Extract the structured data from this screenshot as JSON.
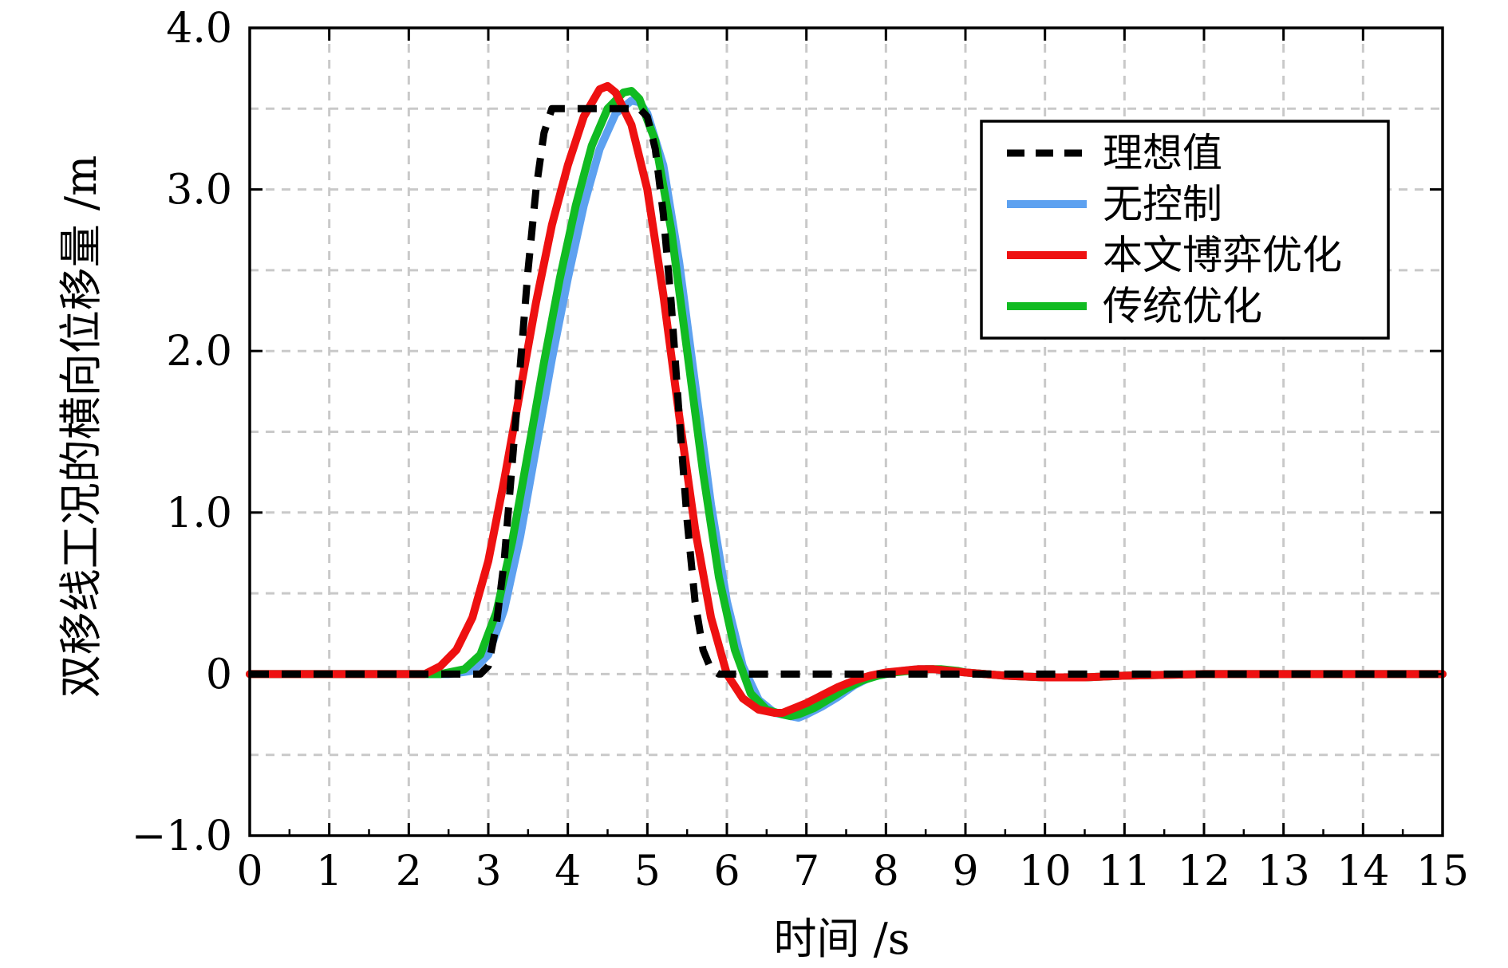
{
  "chart_data": {
    "type": "line",
    "xlabel": "时间 /s",
    "ylabel": "双移线工况的横向位移量 /m",
    "xlim": [
      0,
      15
    ],
    "ylim": [
      -1.0,
      4.0
    ],
    "x_ticks": [
      0,
      1,
      2,
      3,
      4,
      5,
      6,
      7,
      8,
      9,
      10,
      11,
      12,
      13,
      14,
      15
    ],
    "x_tick_labels": [
      "0",
      "1",
      "2",
      "3",
      "4",
      "5",
      "6",
      "7",
      "8",
      "9",
      "10",
      "11",
      "12",
      "13",
      "14",
      "15"
    ],
    "y_ticks": [
      -1.0,
      0,
      1.0,
      2.0,
      3.0,
      4.0
    ],
    "y_tick_labels": [
      "−1.0",
      "0",
      "1.0",
      "2.0",
      "3.0",
      "4.0"
    ],
    "grid": true,
    "legend_position": "top-right",
    "series": [
      {
        "name": "理想值",
        "color": "#000000",
        "style": "dashed",
        "x": [
          0,
          2.9,
          3.0,
          3.1,
          3.2,
          3.3,
          3.4,
          3.5,
          3.6,
          3.7,
          3.8,
          3.9,
          4.0,
          4.5,
          4.9,
          5.0,
          5.1,
          5.2,
          5.3,
          5.4,
          5.5,
          5.6,
          5.7,
          5.8,
          5.9,
          6.0,
          15
        ],
        "y": [
          0,
          0,
          0.05,
          0.3,
          0.7,
          1.3,
          1.9,
          2.5,
          3.0,
          3.35,
          3.5,
          3.5,
          3.5,
          3.5,
          3.5,
          3.45,
          3.25,
          2.85,
          2.3,
          1.6,
          0.95,
          0.45,
          0.15,
          0.03,
          0,
          0,
          0
        ]
      },
      {
        "name": "无控制",
        "color": "#5da1f0",
        "style": "solid",
        "x": [
          0,
          2.5,
          2.8,
          3.0,
          3.2,
          3.4,
          3.6,
          3.8,
          4.0,
          4.2,
          4.4,
          4.6,
          4.8,
          4.9,
          5.0,
          5.2,
          5.4,
          5.6,
          5.8,
          6.0,
          6.2,
          6.4,
          6.6,
          6.8,
          6.9,
          7.0,
          7.2,
          7.4,
          7.6,
          7.8,
          8.0,
          8.2,
          8.4,
          8.6,
          8.8,
          9.0,
          9.5,
          10.0,
          10.5,
          11.0,
          12.0,
          15.0
        ],
        "y": [
          0,
          0,
          0.02,
          0.12,
          0.4,
          0.85,
          1.4,
          1.95,
          2.45,
          2.9,
          3.25,
          3.47,
          3.55,
          3.54,
          3.47,
          3.15,
          2.55,
          1.8,
          1.05,
          0.45,
          0.05,
          -0.16,
          -0.24,
          -0.26,
          -0.27,
          -0.25,
          -0.2,
          -0.14,
          -0.07,
          -0.02,
          0.0,
          0.02,
          0.03,
          0.03,
          0.02,
          0.01,
          -0.01,
          -0.02,
          -0.02,
          -0.01,
          0.0,
          0.0
        ]
      },
      {
        "name": "本文博弈优化",
        "color": "#ee1111",
        "style": "solid",
        "x": [
          0,
          2.2,
          2.4,
          2.6,
          2.8,
          3.0,
          3.2,
          3.4,
          3.6,
          3.8,
          4.0,
          4.2,
          4.4,
          4.5,
          4.6,
          4.8,
          5.0,
          5.2,
          5.4,
          5.6,
          5.8,
          6.0,
          6.2,
          6.4,
          6.6,
          6.7,
          6.8,
          7.0,
          7.2,
          7.4,
          7.6,
          7.8,
          8.0,
          8.2,
          8.4,
          8.6,
          8.8,
          9.0,
          9.5,
          10.0,
          10.5,
          11.0,
          12.0,
          15.0
        ],
        "y": [
          0,
          0,
          0.05,
          0.15,
          0.35,
          0.7,
          1.2,
          1.75,
          2.3,
          2.78,
          3.15,
          3.45,
          3.62,
          3.64,
          3.6,
          3.4,
          3.0,
          2.35,
          1.6,
          0.9,
          0.35,
          0.0,
          -0.15,
          -0.22,
          -0.24,
          -0.24,
          -0.22,
          -0.18,
          -0.13,
          -0.08,
          -0.04,
          -0.01,
          0.01,
          0.02,
          0.03,
          0.03,
          0.02,
          0.01,
          -0.01,
          -0.02,
          -0.02,
          -0.01,
          0.0,
          0.0
        ]
      },
      {
        "name": "传统优化",
        "color": "#11bb22",
        "style": "solid",
        "x": [
          0,
          2.4,
          2.7,
          2.9,
          3.1,
          3.3,
          3.5,
          3.7,
          3.9,
          4.1,
          4.3,
          4.5,
          4.7,
          4.8,
          4.9,
          5.1,
          5.3,
          5.5,
          5.7,
          5.9,
          6.1,
          6.3,
          6.5,
          6.7,
          6.8,
          6.9,
          7.1,
          7.3,
          7.5,
          7.7,
          7.9,
          8.1,
          8.3,
          8.5,
          8.7,
          8.9,
          9.0,
          9.5,
          10.0,
          10.5,
          11.0,
          12.0,
          15.0
        ],
        "y": [
          0,
          0,
          0.03,
          0.12,
          0.38,
          0.82,
          1.37,
          1.93,
          2.45,
          2.9,
          3.27,
          3.5,
          3.6,
          3.61,
          3.56,
          3.3,
          2.75,
          2.0,
          1.25,
          0.6,
          0.15,
          -0.12,
          -0.22,
          -0.25,
          -0.26,
          -0.25,
          -0.21,
          -0.15,
          -0.09,
          -0.04,
          -0.01,
          0.01,
          0.02,
          0.03,
          0.03,
          0.02,
          0.01,
          -0.01,
          -0.02,
          -0.02,
          -0.01,
          0.0,
          0.0
        ]
      }
    ]
  }
}
